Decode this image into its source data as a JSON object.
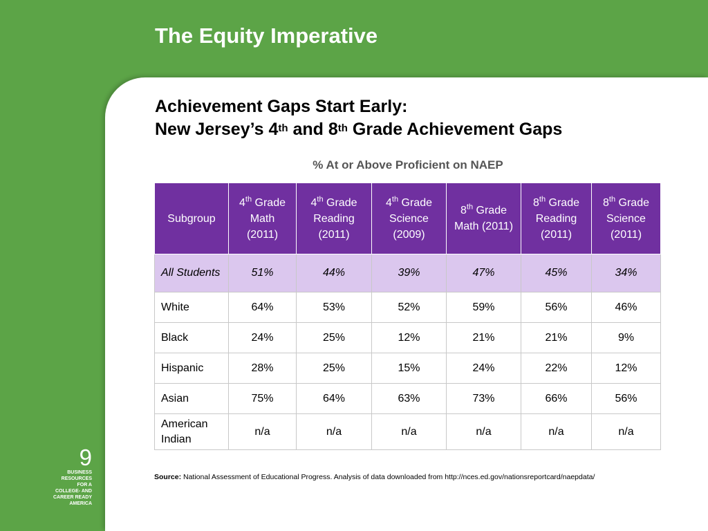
{
  "header": {
    "title": "The Equity Imperative"
  },
  "subtitle": {
    "line1": "Achievement Gaps Start Early:",
    "line2_prefix": "New Jersey’s 4",
    "line2_sup1": "th",
    "line2_mid": " and 8",
    "line2_sup2": "th",
    "line2_suffix": " Grade Achievement Gaps"
  },
  "caption": "% At or Above Proficient on NAEP",
  "table": {
    "headers": [
      {
        "label": "Subgroup"
      },
      {
        "num": "4",
        "sup": "th",
        "rest": " Grade Math (2011)"
      },
      {
        "num": "4",
        "sup": "th",
        "rest": " Grade Reading (2011)"
      },
      {
        "num": "4",
        "sup": "th",
        "rest": " Grade Science (2009)"
      },
      {
        "num": "8",
        "sup": "th",
        "rest": " Grade Math (2011)"
      },
      {
        "num": "8",
        "sup": "th",
        "rest": " Grade Reading (2011)"
      },
      {
        "num": "8",
        "sup": "th",
        "rest": " Grade Science (2011)"
      }
    ],
    "rows": [
      {
        "subgroup": "All Students",
        "values": [
          "51%",
          "44%",
          "39%",
          "47%",
          "45%",
          "34%"
        ]
      },
      {
        "subgroup": "White",
        "values": [
          "64%",
          "53%",
          "52%",
          "59%",
          "56%",
          "46%"
        ]
      },
      {
        "subgroup": "Black",
        "values": [
          "24%",
          "25%",
          "12%",
          "21%",
          "21%",
          "9%"
        ]
      },
      {
        "subgroup": "Hispanic",
        "values": [
          "28%",
          "25%",
          "15%",
          "24%",
          "22%",
          "12%"
        ]
      },
      {
        "subgroup": "Asian",
        "values": [
          "75%",
          "64%",
          "63%",
          "73%",
          "66%",
          "56%"
        ]
      },
      {
        "subgroup": "American Indian",
        "values": [
          "n/a",
          "n/a",
          "n/a",
          "n/a",
          "n/a",
          "n/a"
        ]
      }
    ]
  },
  "source": {
    "label": "Source:",
    "text": " National Assessment of Educational Progress. Analysis of data downloaded from http://nces.ed.gov/nationsreportcard/naepdata/"
  },
  "footer": {
    "page_number": "9",
    "brand_lines": [
      "BUSINESS",
      "RESOURCES",
      "FOR A",
      "COLLEGE- AND",
      "CAREER READY",
      "AMERICA"
    ]
  },
  "colors": {
    "frame_green": "#5ca447",
    "header_purple": "#7030a0",
    "highlight_lavender": "#dbc7ee"
  }
}
